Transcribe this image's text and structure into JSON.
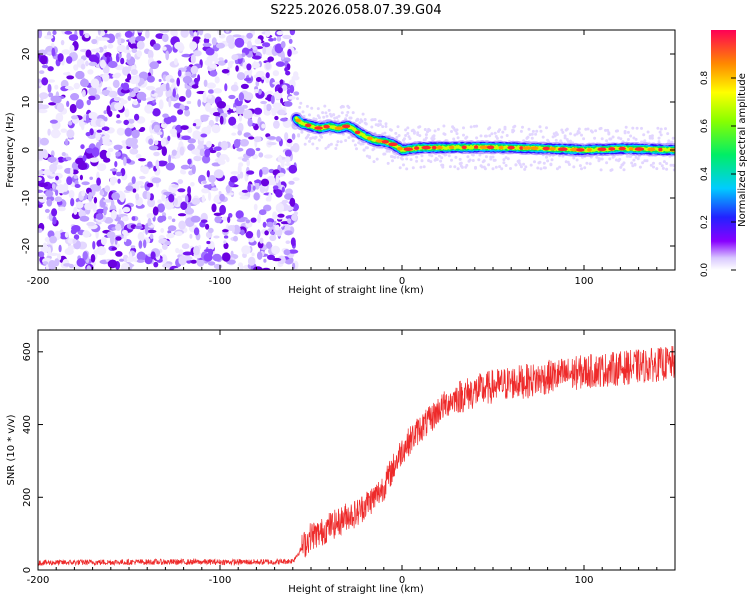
{
  "title": "S225.2026.058.07.39.G04",
  "colors": {
    "snr_line": "#ee2a2a",
    "speckle_dark": "#6a00e0",
    "speckle_light": "#e6dcff",
    "axis": "#000000"
  },
  "chart_data": [
    {
      "type": "heatmap",
      "title": "S225.2026.058.07.39.G04",
      "xlabel": "Height of straight line (km)",
      "ylabel": "Frequency (Hz)",
      "xlim": [
        -200,
        150
      ],
      "ylim": [
        -25,
        25
      ],
      "xticks": [
        -200,
        -100,
        0,
        100
      ],
      "yticks": [
        -20,
        -10,
        0,
        10,
        20
      ],
      "noise_region_x": [
        -200,
        -58
      ],
      "ridge": {
        "x": [
          -58,
          -55,
          -50,
          -45,
          -40,
          -35,
          -30,
          -27,
          -25,
          -20,
          -15,
          -10,
          -5,
          0,
          10,
          20,
          40,
          60,
          80,
          100,
          120,
          150
        ],
        "y": [
          6.5,
          5.5,
          5,
          4.5,
          5,
          4.5,
          5,
          4.5,
          3.8,
          2.8,
          2,
          1.8,
          1.2,
          0,
          0.5,
          0.5,
          0.6,
          0.5,
          0.3,
          0,
          0.3,
          0
        ]
      },
      "colorbar": {
        "label": "Normalized spectral amplitude",
        "range": [
          0,
          1
        ],
        "ticks": [
          0.0,
          0.2,
          0.4,
          0.6,
          0.8
        ],
        "tick_labels": [
          "0.0",
          "0.2",
          "0.4",
          "0.6",
          "0.8"
        ]
      }
    },
    {
      "type": "line",
      "xlabel": "Height of straight line (km)",
      "ylabel": "SNR (10 * v/v)",
      "xlim": [
        -200,
        150
      ],
      "ylim": [
        0,
        660
      ],
      "xticks": [
        -200,
        -100,
        0,
        100
      ],
      "yticks": [
        0,
        200,
        400,
        600
      ],
      "series": [
        {
          "name": "SNR",
          "x": [
            -200,
            -150,
            -100,
            -70,
            -60,
            -50,
            -45,
            -40,
            -35,
            -30,
            -25,
            -20,
            -15,
            -10,
            -5,
            0,
            5,
            10,
            15,
            20,
            25,
            30,
            40,
            50,
            60,
            70,
            80,
            100,
            120,
            150
          ],
          "y": [
            20,
            22,
            22,
            22,
            25,
            95,
            100,
            120,
            130,
            150,
            155,
            180,
            200,
            230,
            280,
            330,
            360,
            390,
            410,
            440,
            460,
            475,
            490,
            505,
            515,
            520,
            530,
            545,
            555,
            570
          ]
        }
      ]
    }
  ]
}
